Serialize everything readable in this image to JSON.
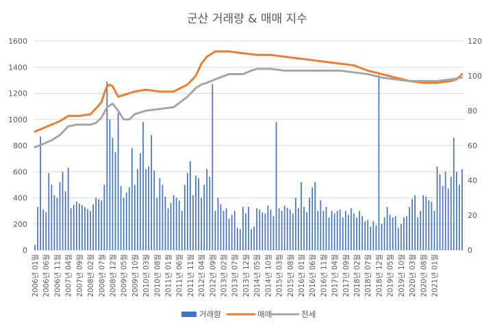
{
  "chart_data": {
    "type": "bar+line",
    "title": "군산 거래량 & 매매 지수",
    "y_left": {
      "ylim": [
        0,
        1600
      ],
      "ticks": [
        0,
        200,
        400,
        600,
        800,
        1000,
        1200,
        1400,
        1600
      ]
    },
    "y_right": {
      "ylim": [
        0,
        120
      ],
      "ticks": [
        0,
        20,
        40,
        60,
        80,
        100,
        120
      ]
    },
    "grid": true,
    "legend_position": "bottom",
    "x_tick_labels": [
      "2006년 01월",
      "2006년 06월",
      "2006년 11월",
      "2007년 04월",
      "2007년 09월",
      "2008년 02월",
      "2008년 07월",
      "2008년 12월",
      "2009년 05월",
      "2009년 10월",
      "2010년 03월",
      "2010년 08월",
      "2011년 01월",
      "2011년 06월",
      "2011년 11월",
      "2012년 04월",
      "2012년 09월",
      "2013년 02월",
      "2013년 07월",
      "2013년 12월",
      "2014년 05월",
      "2014년 10월",
      "2015년 03월",
      "2015년 08월",
      "2016년 01월",
      "2016년 06월",
      "2016년 11월",
      "2017년 04월",
      "2017년 09월",
      "2018년 02월",
      "2018년 07월",
      "2018년 12월",
      "2019년 05월",
      "2019년 10월",
      "2020년 03월",
      "2020년 08월",
      "2021년 01월"
    ],
    "series": [
      {
        "name": "거래량",
        "type": "bar",
        "axis": "left",
        "color": "#4472C4",
        "anchors": [
          [
            0,
            40
          ],
          [
            1,
            330
          ],
          [
            2,
            870
          ],
          [
            3,
            310
          ],
          [
            4,
            290
          ],
          [
            5,
            590
          ],
          [
            6,
            500
          ],
          [
            7,
            420
          ],
          [
            8,
            400
          ],
          [
            9,
            520
          ],
          [
            10,
            600
          ],
          [
            11,
            450
          ],
          [
            12,
            630
          ],
          [
            13,
            320
          ],
          [
            15,
            370
          ],
          [
            20,
            300
          ],
          [
            22,
            400
          ],
          [
            24,
            380
          ],
          [
            25,
            500
          ],
          [
            26,
            1290
          ],
          [
            27,
            1000
          ],
          [
            28,
            860
          ],
          [
            29,
            750
          ],
          [
            30,
            1050
          ],
          [
            31,
            490
          ],
          [
            32,
            400
          ],
          [
            34,
            480
          ],
          [
            35,
            780
          ],
          [
            36,
            500
          ],
          [
            38,
            740
          ],
          [
            39,
            980
          ],
          [
            40,
            620
          ],
          [
            41,
            640
          ],
          [
            42,
            880
          ],
          [
            43,
            610
          ],
          [
            44,
            400
          ],
          [
            45,
            550
          ],
          [
            46,
            500
          ],
          [
            48,
            320
          ],
          [
            49,
            360
          ],
          [
            50,
            420
          ],
          [
            52,
            380
          ],
          [
            53,
            300
          ],
          [
            54,
            500
          ],
          [
            56,
            680
          ],
          [
            57,
            420
          ],
          [
            58,
            570
          ],
          [
            59,
            550
          ],
          [
            60,
            400
          ],
          [
            61,
            500
          ],
          [
            62,
            620
          ],
          [
            63,
            560
          ],
          [
            64,
            1270
          ],
          [
            65,
            300
          ],
          [
            66,
            400
          ],
          [
            68,
            300
          ],
          [
            69,
            320
          ],
          [
            70,
            240
          ],
          [
            72,
            300
          ],
          [
            73,
            170
          ],
          [
            74,
            160
          ],
          [
            75,
            330
          ],
          [
            76,
            280
          ],
          [
            77,
            330
          ],
          [
            78,
            160
          ],
          [
            79,
            180
          ],
          [
            80,
            320
          ],
          [
            81,
            310
          ],
          [
            82,
            290
          ],
          [
            83,
            280
          ],
          [
            84,
            340
          ],
          [
            85,
            310
          ],
          [
            86,
            260
          ],
          [
            87,
            980
          ],
          [
            88,
            320
          ],
          [
            89,
            300
          ],
          [
            90,
            340
          ],
          [
            92,
            310
          ],
          [
            93,
            280
          ],
          [
            94,
            400
          ],
          [
            95,
            320
          ],
          [
            96,
            520
          ],
          [
            97,
            330
          ],
          [
            98,
            290
          ],
          [
            99,
            400
          ],
          [
            100,
            480
          ],
          [
            101,
            520
          ],
          [
            102,
            300
          ],
          [
            103,
            380
          ],
          [
            104,
            300
          ],
          [
            105,
            330
          ],
          [
            106,
            250
          ],
          [
            107,
            300
          ],
          [
            108,
            280
          ],
          [
            109,
            300
          ],
          [
            110,
            310
          ],
          [
            111,
            250
          ],
          [
            112,
            300
          ],
          [
            113,
            270
          ],
          [
            114,
            320
          ],
          [
            115,
            280
          ],
          [
            116,
            250
          ],
          [
            117,
            300
          ],
          [
            118,
            260
          ],
          [
            119,
            220
          ],
          [
            120,
            230
          ],
          [
            121,
            180
          ],
          [
            122,
            220
          ],
          [
            123,
            190
          ],
          [
            124,
            1340
          ],
          [
            125,
            200
          ],
          [
            126,
            250
          ],
          [
            127,
            330
          ],
          [
            128,
            270
          ],
          [
            129,
            250
          ],
          [
            130,
            260
          ],
          [
            131,
            170
          ],
          [
            132,
            200
          ],
          [
            133,
            250
          ],
          [
            134,
            260
          ],
          [
            135,
            330
          ],
          [
            136,
            390
          ],
          [
            137,
            420
          ],
          [
            138,
            250
          ],
          [
            139,
            300
          ],
          [
            140,
            420
          ],
          [
            141,
            410
          ],
          [
            142,
            380
          ],
          [
            143,
            370
          ],
          [
            144,
            300
          ],
          [
            145,
            640
          ],
          [
            146,
            580
          ],
          [
            147,
            490
          ],
          [
            148,
            600
          ],
          [
            149,
            470
          ],
          [
            150,
            560
          ],
          [
            151,
            860
          ],
          [
            152,
            600
          ],
          [
            153,
            500
          ],
          [
            154,
            620
          ]
        ]
      },
      {
        "name": "매매",
        "type": "line",
        "axis": "right",
        "color": "#ED7D31",
        "anchors": [
          [
            0,
            68
          ],
          [
            3,
            70
          ],
          [
            6,
            72
          ],
          [
            9,
            74
          ],
          [
            12,
            77
          ],
          [
            16,
            77
          ],
          [
            20,
            78
          ],
          [
            23,
            83
          ],
          [
            24,
            85
          ],
          [
            25,
            90
          ],
          [
            26,
            94
          ],
          [
            27,
            95
          ],
          [
            28,
            94
          ],
          [
            29,
            91
          ],
          [
            30,
            88
          ],
          [
            32,
            89
          ],
          [
            34,
            90
          ],
          [
            36,
            91
          ],
          [
            40,
            92
          ],
          [
            45,
            91
          ],
          [
            50,
            91
          ],
          [
            55,
            95
          ],
          [
            58,
            100
          ],
          [
            60,
            107
          ],
          [
            62,
            111
          ],
          [
            65,
            114
          ],
          [
            70,
            114
          ],
          [
            75,
            113
          ],
          [
            80,
            112
          ],
          [
            85,
            112
          ],
          [
            90,
            111
          ],
          [
            95,
            110
          ],
          [
            100,
            109
          ],
          [
            105,
            108
          ],
          [
            110,
            107
          ],
          [
            115,
            106
          ],
          [
            120,
            103
          ],
          [
            125,
            101
          ],
          [
            130,
            99
          ],
          [
            135,
            97
          ],
          [
            140,
            96
          ],
          [
            145,
            96
          ],
          [
            150,
            97
          ],
          [
            152,
            98
          ],
          [
            154,
            101
          ]
        ]
      },
      {
        "name": "전세",
        "type": "line",
        "axis": "right",
        "color": "#A5A5A5",
        "anchors": [
          [
            0,
            59
          ],
          [
            3,
            61
          ],
          [
            6,
            63
          ],
          [
            9,
            66
          ],
          [
            12,
            71
          ],
          [
            15,
            72
          ],
          [
            20,
            72
          ],
          [
            22,
            73
          ],
          [
            24,
            76
          ],
          [
            26,
            82
          ],
          [
            28,
            84
          ],
          [
            30,
            80
          ],
          [
            32,
            75
          ],
          [
            34,
            75
          ],
          [
            36,
            78
          ],
          [
            40,
            80
          ],
          [
            45,
            81
          ],
          [
            50,
            82
          ],
          [
            55,
            88
          ],
          [
            58,
            93
          ],
          [
            60,
            95
          ],
          [
            62,
            96
          ],
          [
            65,
            98
          ],
          [
            70,
            101
          ],
          [
            75,
            101
          ],
          [
            78,
            103
          ],
          [
            80,
            104
          ],
          [
            85,
            104
          ],
          [
            90,
            103
          ],
          [
            95,
            103
          ],
          [
            100,
            103
          ],
          [
            105,
            103
          ],
          [
            110,
            103
          ],
          [
            115,
            102
          ],
          [
            120,
            101
          ],
          [
            125,
            99
          ],
          [
            130,
            98
          ],
          [
            135,
            97
          ],
          [
            140,
            97
          ],
          [
            145,
            97
          ],
          [
            150,
            98
          ],
          [
            154,
            99
          ]
        ]
      }
    ]
  }
}
